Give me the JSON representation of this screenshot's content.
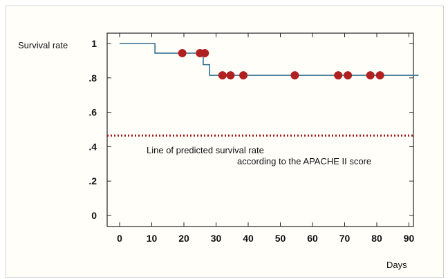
{
  "chart_data": {
    "type": "line",
    "ylabel": "Survival rate",
    "xlabel": "Days",
    "x_ticks": [
      0,
      10,
      20,
      30,
      40,
      50,
      60,
      70,
      80,
      90
    ],
    "y_ticks": [
      "0",
      ".2",
      ".4",
      ".6",
      ".8",
      "1"
    ],
    "y_tick_values": [
      0,
      0.2,
      0.4,
      0.6,
      0.8,
      1
    ],
    "xlim": [
      -4,
      93
    ],
    "ylim": [
      -0.05,
      1.05
    ],
    "grid": false,
    "series": [
      {
        "style": "step",
        "color": "#2e6e8e",
        "x": [
          0,
          11,
          26,
          28,
          93
        ],
        "y": [
          1,
          0.944,
          0.877,
          0.815,
          0.815
        ]
      }
    ],
    "censored_markers": {
      "color": "#b02020",
      "points": [
        [
          19.5,
          0.944
        ],
        [
          25,
          0.944
        ],
        [
          26.5,
          0.944
        ],
        [
          32,
          0.815
        ],
        [
          34.5,
          0.815
        ],
        [
          38.5,
          0.815
        ],
        [
          54.5,
          0.815
        ],
        [
          68,
          0.815
        ],
        [
          71,
          0.815
        ],
        [
          78,
          0.815
        ],
        [
          81,
          0.815
        ]
      ]
    },
    "reference_line": {
      "y": 0.465,
      "style": "dotted",
      "color": "#a01818",
      "label_line1": "Line of predicted survival rate",
      "label_line2": "according to the APACHE II score"
    }
  }
}
